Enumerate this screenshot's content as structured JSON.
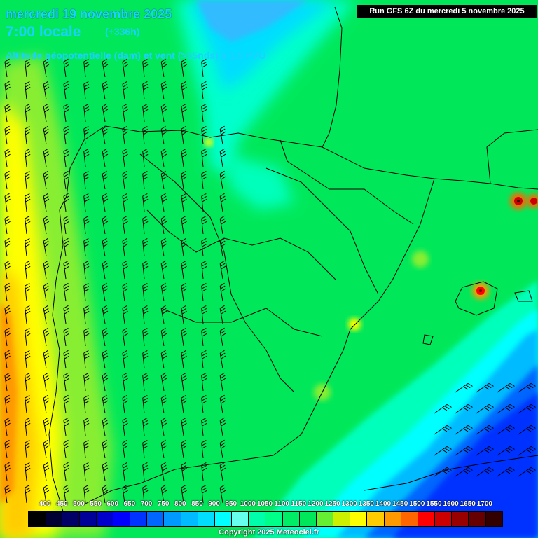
{
  "header": {
    "date_line": "mercredi 19 novembre 2025",
    "time_line": "7:00 locale",
    "lead_time": "(+336h)",
    "parameter": "Altitude géopotentielle (dam) et vent (>55nds) à 1.5 PVU",
    "run_info": "Run GFS 6Z du mercredi 5 novembre 2025"
  },
  "legend": {
    "labels": [
      "400",
      "450",
      "500",
      "550",
      "600",
      "650",
      "700",
      "750",
      "800",
      "850",
      "900",
      "950",
      "1000",
      "1050",
      "1100",
      "1150",
      "1200",
      "1250",
      "1300",
      "1350",
      "1400",
      "1450",
      "1500",
      "1550",
      "1600",
      "1650",
      "1700"
    ],
    "colors": [
      "#000000",
      "#000033",
      "#000066",
      "#000099",
      "#0000cc",
      "#0000ff",
      "#0033ff",
      "#0066ff",
      "#0099ff",
      "#00bbff",
      "#00ddff",
      "#00ffff",
      "#66ffee",
      "#00ffaa",
      "#00ff88",
      "#00ee66",
      "#00e85a",
      "#66ee33",
      "#ccf000",
      "#ffff00",
      "#ffcc00",
      "#ff9900",
      "#ff6600",
      "#ff0000",
      "#cc0000",
      "#990000",
      "#660000",
      "#330000"
    ]
  },
  "copyright": "Copyright 2025 Meteociel.fr",
  "colors": {
    "title_text": "#1ad2ff",
    "land_base": "#00e85a",
    "coastline": "#000000"
  }
}
